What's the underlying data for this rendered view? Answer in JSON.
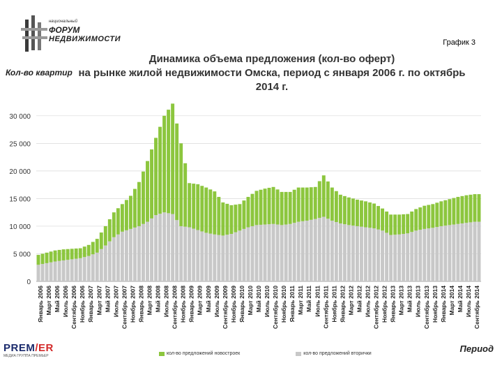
{
  "logo": {
    "line1": "национальный",
    "line2": "ФОРУМ",
    "line3": "НЕДВИЖИМОСТИ"
  },
  "graph_number": "График 3",
  "bottom_logo": {
    "name_a": "PREM",
    "name_b": "/ER",
    "tagline": "МЕДИА ГРУППА ПРЕМЬЕР"
  },
  "chart_data": {
    "type": "bar",
    "title_lines": [
      "Динамика объема предложения (кол-во оферт)",
      "на рынке жилой недвижимости Омска, период с января 2006 г. по октябрь",
      "2014 г."
    ],
    "ylabel": "Кол-во квартир",
    "xlabel": "Период",
    "ylim": [
      0,
      32000
    ],
    "yticks": [
      0,
      5000,
      10000,
      15000,
      20000,
      25000,
      30000
    ],
    "ytick_labels": [
      "0",
      "5 000",
      "10 000",
      "15 000",
      "20 000",
      "25 000",
      "30 000"
    ],
    "stacked": true,
    "grid": true,
    "legend_position": "bottom",
    "categories": [
      "Январь 2006",
      "Март 2006",
      "Май 2006",
      "Июль 2006",
      "Сентябрь 2006",
      "Ноябрь 2006",
      "Январь 2007",
      "Март 2007",
      "Май 2007",
      "Июль 2007",
      "Сентябрь 2007",
      "Ноябрь 2007",
      "Январь 2008",
      "Март 2008",
      "Май 2008",
      "Июль 2008",
      "Сентябрь 2008",
      "Ноябрь 2008",
      "Январь 2009",
      "Март 2009",
      "Май 2009",
      "Июль 2009",
      "Сентябрь 2009",
      "Ноябрь 2009",
      "Январь 2010",
      "Март 2010",
      "Май 2010",
      "Июль 2010",
      "Сентябрь 2010",
      "Ноябрь 2010",
      "Январь 2011",
      "Март 2011",
      "Май 2011",
      "Июль 2011",
      "Сентябрь 2011",
      "Ноябрь 2011",
      "Январь 2012",
      "Март 2012",
      "Май 2012",
      "Июль 2012",
      "Сентябрь 2012",
      "Ноябрь 2012",
      "Январь 2013",
      "Март 2013",
      "Май 2013",
      "Июль 2013",
      "Сентябрь 2013",
      "Ноябрь 2013",
      "Январь 2014",
      "Март 2014",
      "Май 2014",
      "Июль 2014",
      "Сентябрь 2014"
    ],
    "series": [
      {
        "name": "кол-во предложений вторички",
        "color": "#c8c8c8",
        "values": [
          3000,
          3300,
          3600,
          3800,
          4000,
          4200,
          4600,
          5200,
          6500,
          8000,
          9000,
          9500,
          10000,
          10800,
          12000,
          12500,
          12200,
          10000,
          9800,
          9300,
          8800,
          8500,
          8300,
          8600,
          9200,
          9800,
          10200,
          10300,
          10400,
          10200,
          10400,
          10800,
          11000,
          11300,
          11700,
          11000,
          10500,
          10200,
          10000,
          9800,
          9600,
          9200,
          8400,
          8500,
          8700,
          9200,
          9500,
          9700,
          10000,
          10200,
          10400,
          10600,
          10800
        ]
      },
      {
        "name": "кол-во предложений новостроек",
        "color": "#8cc63e",
        "values": [
          1800,
          1900,
          2000,
          2000,
          1900,
          1800,
          2000,
          2500,
          3500,
          4500,
          5000,
          6000,
          8000,
          11000,
          14000,
          17500,
          20000,
          15000,
          8000,
          8300,
          8200,
          7800,
          6000,
          5200,
          4800,
          5500,
          6200,
          6500,
          6700,
          6000,
          5800,
          6200,
          6000,
          5800,
          7500,
          6000,
          5200,
          5000,
          4800,
          4700,
          4500,
          4000,
          3700,
          3600,
          3500,
          3900,
          4200,
          4300,
          4500,
          4700,
          4900,
          5000,
          5000
        ]
      }
    ]
  }
}
